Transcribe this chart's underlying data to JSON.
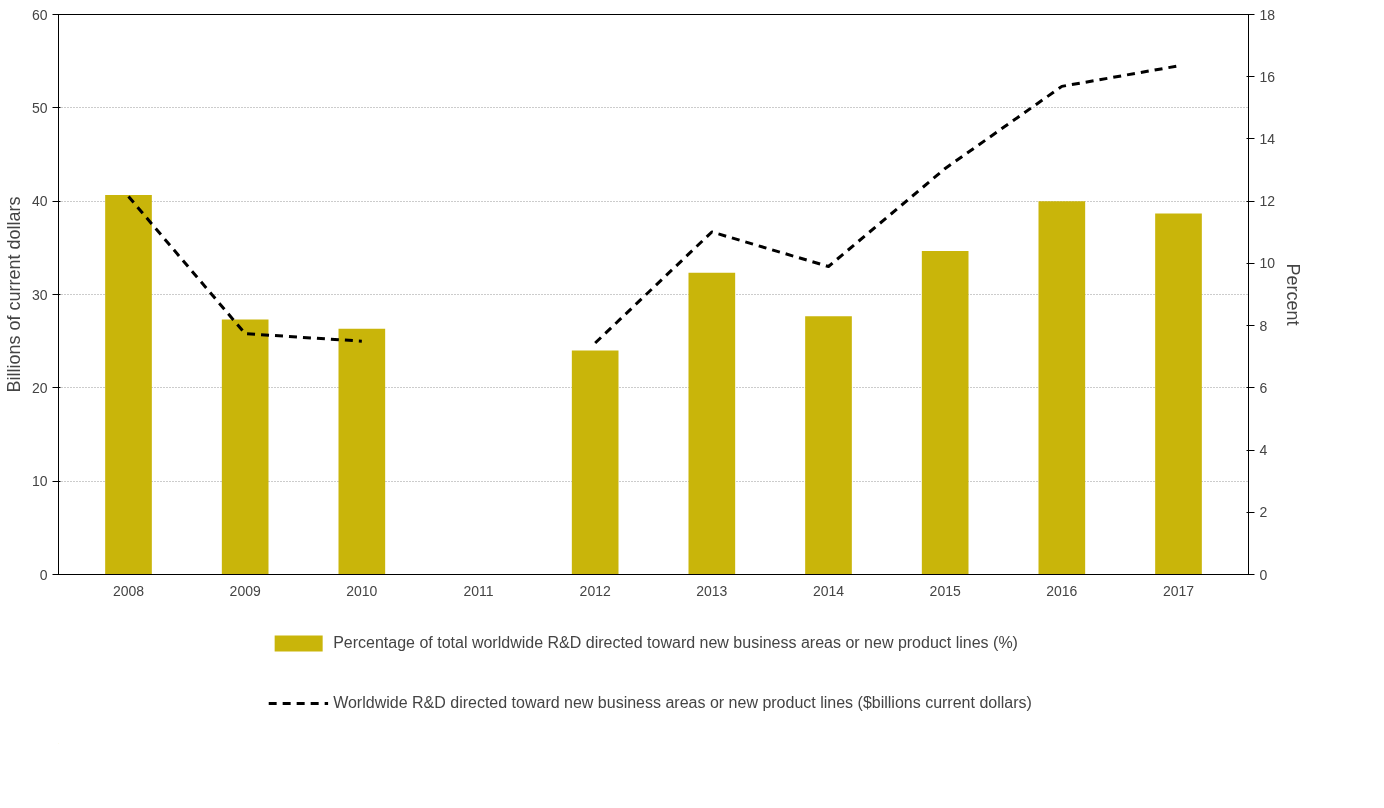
{
  "chart_data": {
    "type": "bar",
    "categories": [
      "2008",
      "2009",
      "2010",
      "2011",
      "2012",
      "2013",
      "2014",
      "2015",
      "2016",
      "2017"
    ],
    "series": [
      {
        "name": "Percentage of total worldwide R&D directed toward new business areas or new product lines (%)",
        "axis": "y2",
        "color": "#c9b50a",
        "values": [
          12.2,
          8.2,
          7.9,
          null,
          7.2,
          9.7,
          8.3,
          10.4,
          12.0,
          11.6
        ]
      },
      {
        "name": "Worldwide R&D directed toward new business areas or new product lines ($billions current dollars)",
        "type": "line",
        "color": "#000000",
        "line_style": "dashed",
        "values": [
          40.5,
          25.8,
          25.0,
          null,
          24.8,
          36.7,
          33.0,
          43.5,
          52.3,
          54.5
        ]
      }
    ],
    "ylabel": "Billions of current dollars",
    "y2label": "Percent",
    "ylim": [
      0,
      60
    ],
    "yticks": [
      0,
      10,
      20,
      30,
      40,
      50,
      60
    ],
    "y2lim": [
      0,
      18
    ],
    "y2ticks": [
      0,
      2,
      4,
      6,
      8,
      10,
      12,
      14,
      16,
      18
    ],
    "grid": "y",
    "legend": "bottom",
    "marker": "none"
  }
}
